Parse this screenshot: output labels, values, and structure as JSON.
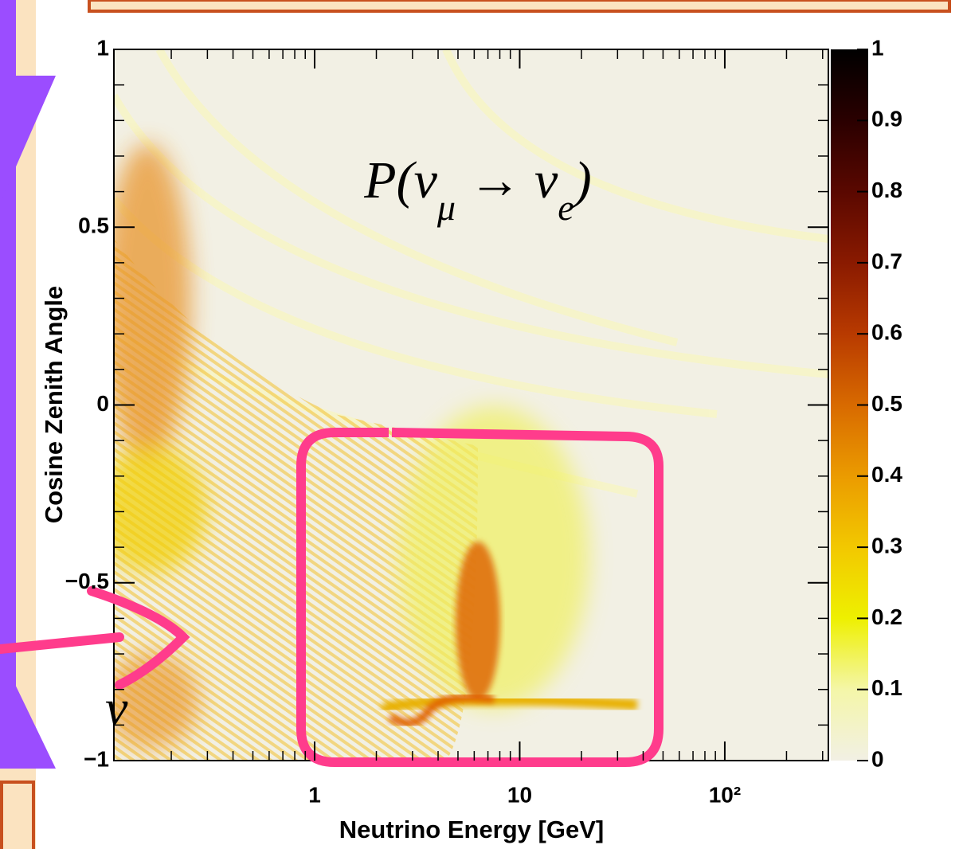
{
  "chart_data": {
    "type": "heatmap",
    "title_parts": [
      "P(ν",
      "μ",
      " → ν",
      "e",
      ")"
    ],
    "x_label": "Neutrino Energy [GeV]",
    "y_label": "Cosine Zenith Angle",
    "annotation": "ν",
    "log_x": true,
    "xlim": [
      0.105,
      320
    ],
    "xticks": [
      1,
      10,
      {
        "value": 100,
        "label": "10²"
      }
    ],
    "ylim": [
      -1,
      1
    ],
    "yticks": [
      {
        "value": -1,
        "label": "−1"
      },
      {
        "value": -0.5,
        "label": "−0.5"
      },
      0,
      0.5,
      1
    ],
    "zlim": [
      0,
      1
    ],
    "zticks": [
      0,
      0.1,
      0.2,
      0.3,
      0.4,
      0.5,
      0.6,
      0.7,
      0.8,
      0.9,
      1
    ],
    "colorscale": [
      "#f2f0e4",
      "#f4f6a8",
      "#eef000",
      "#f2c800",
      "#eb9b00",
      "#d86a00",
      "#b83a00",
      "#8a1a00",
      "#5a0800",
      "#2a0000",
      "#000000"
    ]
  }
}
